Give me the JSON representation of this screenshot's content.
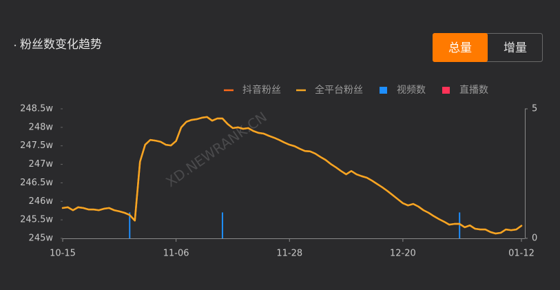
{
  "tabs": [
    "总量",
    "增量"
  ],
  "chart_data": {
    "type": "line",
    "title": "粉丝数变化趋势",
    "watermark": "XD.NEWRANK.CN",
    "categories": [
      "10-15",
      null,
      null,
      null,
      null,
      null,
      null,
      null,
      null,
      null,
      null,
      null,
      null,
      null,
      null,
      null,
      null,
      null,
      null,
      null,
      null,
      null,
      "11-06",
      null,
      null,
      null,
      null,
      null,
      null,
      null,
      null,
      null,
      null,
      null,
      null,
      null,
      null,
      null,
      null,
      null,
      null,
      null,
      null,
      null,
      "11-28",
      null,
      null,
      null,
      null,
      null,
      null,
      null,
      null,
      null,
      null,
      null,
      null,
      null,
      null,
      null,
      null,
      null,
      null,
      null,
      null,
      null,
      "12-20",
      null,
      null,
      null,
      null,
      null,
      null,
      null,
      null,
      null,
      null,
      null,
      null,
      null,
      null,
      null,
      null,
      null,
      null,
      null,
      null,
      null,
      null,
      "01-12"
    ],
    "ylim": [
      245,
      248.5
    ],
    "yticks": [
      {
        "value": 245,
        "label": "245w"
      },
      {
        "value": 245.5,
        "label": "245.5w"
      },
      {
        "value": 246,
        "label": "246w"
      },
      {
        "value": 246.5,
        "label": "246.5w"
      },
      {
        "value": 247,
        "label": "247w"
      },
      {
        "value": 247.5,
        "label": "247.5w"
      },
      {
        "value": 248,
        "label": "248w"
      },
      {
        "value": 248.5,
        "label": "248.5w"
      }
    ],
    "y2lim": [
      0,
      5
    ],
    "y2ticks": [
      0,
      5
    ],
    "series": [
      {
        "name": "抖音粉丝",
        "type": "line",
        "color": "#ff6a1a",
        "values": [
          245.82,
          245.84,
          245.76,
          245.84,
          245.82,
          245.78,
          245.78,
          245.76,
          245.8,
          245.82,
          245.76,
          245.73,
          245.69,
          245.63,
          245.48,
          247.07,
          247.53,
          247.66,
          247.64,
          247.61,
          247.53,
          247.51,
          247.63,
          248.0,
          248.15,
          248.2,
          248.22,
          248.26,
          248.28,
          248.18,
          248.24,
          248.24,
          248.09,
          247.98,
          248.0,
          247.96,
          247.98,
          247.9,
          247.85,
          247.83,
          247.77,
          247.72,
          247.66,
          247.59,
          247.53,
          247.49,
          247.42,
          247.36,
          247.35,
          247.29,
          247.2,
          247.12,
          247.01,
          246.92,
          246.82,
          246.73,
          246.82,
          246.73,
          246.68,
          246.64,
          246.56,
          246.47,
          246.38,
          246.28,
          246.17,
          246.06,
          245.95,
          245.89,
          245.93,
          245.86,
          245.76,
          245.69,
          245.6,
          245.52,
          245.45,
          245.37,
          245.39,
          245.39,
          245.3,
          245.35,
          245.26,
          245.24,
          245.24,
          245.17,
          245.13,
          245.15,
          245.24,
          245.22,
          245.24,
          245.34
        ]
      },
      {
        "name": "全平台粉丝",
        "type": "line",
        "color": "#f5a623",
        "values": [
          245.82,
          245.84,
          245.76,
          245.84,
          245.82,
          245.78,
          245.78,
          245.76,
          245.8,
          245.82,
          245.76,
          245.73,
          245.69,
          245.63,
          245.48,
          247.07,
          247.53,
          247.66,
          247.64,
          247.61,
          247.53,
          247.51,
          247.63,
          248.0,
          248.15,
          248.2,
          248.22,
          248.26,
          248.28,
          248.18,
          248.24,
          248.24,
          248.09,
          247.98,
          248.0,
          247.96,
          247.98,
          247.9,
          247.85,
          247.83,
          247.77,
          247.72,
          247.66,
          247.59,
          247.53,
          247.49,
          247.42,
          247.36,
          247.35,
          247.29,
          247.2,
          247.12,
          247.01,
          246.92,
          246.82,
          246.73,
          246.82,
          246.73,
          246.68,
          246.64,
          246.56,
          246.47,
          246.38,
          246.28,
          246.17,
          246.06,
          245.95,
          245.89,
          245.93,
          245.86,
          245.76,
          245.69,
          245.6,
          245.52,
          245.45,
          245.37,
          245.39,
          245.39,
          245.3,
          245.35,
          245.26,
          245.24,
          245.24,
          245.17,
          245.13,
          245.15,
          245.24,
          245.22,
          245.24,
          245.34
        ]
      },
      {
        "name": "视频数",
        "type": "bar",
        "axis": "y2",
        "color": "#1e8fff",
        "values": [
          0,
          0,
          0,
          0,
          0,
          0,
          0,
          0,
          0,
          0,
          0,
          0,
          0,
          1,
          0,
          0,
          0,
          0,
          0,
          0,
          0,
          0,
          0,
          0,
          0,
          0,
          0,
          0,
          0,
          0,
          0,
          1,
          0,
          0,
          0,
          0,
          0,
          0,
          0,
          0,
          0,
          0,
          0,
          0,
          0,
          0,
          0,
          0,
          0,
          0,
          0,
          0,
          0,
          0,
          0,
          0,
          0,
          0,
          0,
          0,
          0,
          0,
          0,
          0,
          0,
          0,
          0,
          0,
          0,
          0,
          0,
          0,
          0,
          0,
          0,
          0,
          0,
          1,
          0,
          0,
          0,
          0,
          0,
          0,
          0,
          0,
          0,
          0,
          0,
          0
        ]
      },
      {
        "name": "直播数",
        "type": "bar",
        "axis": "y2",
        "color": "#ff3358",
        "values": [
          0,
          0,
          0,
          0,
          0,
          0,
          0,
          0,
          0,
          0,
          0,
          0,
          0,
          0,
          0,
          0,
          0,
          0,
          0,
          0,
          0,
          0,
          0,
          0,
          0,
          0,
          0,
          0,
          0,
          0,
          0,
          0,
          0,
          0,
          0,
          0,
          0,
          0,
          0,
          0,
          0,
          0,
          0,
          0,
          0,
          0,
          0,
          0,
          0,
          0,
          0,
          0,
          0,
          0,
          0,
          0,
          0,
          0,
          0,
          0,
          0,
          0,
          0,
          0,
          0,
          0,
          0,
          0,
          0,
          0,
          0,
          0,
          0,
          0,
          0,
          0,
          0,
          0,
          0,
          0,
          0,
          0,
          0,
          0,
          0,
          0,
          0,
          0,
          0,
          0
        ]
      }
    ]
  }
}
